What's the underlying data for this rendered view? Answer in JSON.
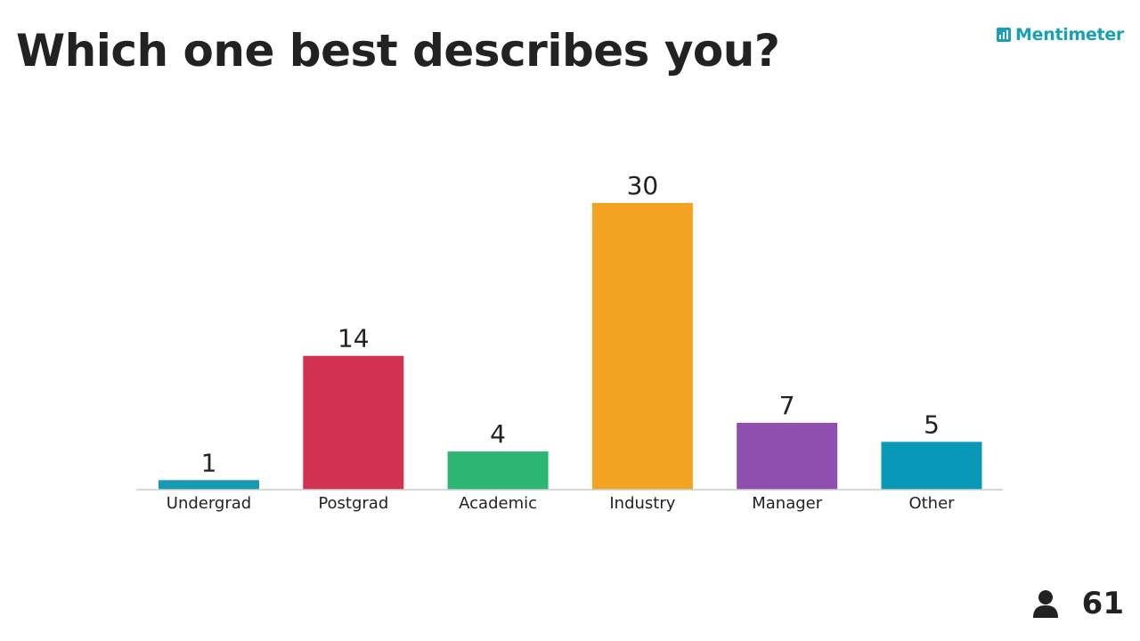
{
  "question": {
    "title": "Which one best describes you?"
  },
  "brand": {
    "name": "Mentimeter",
    "icon": "bar-chart-icon",
    "color": "#17a1b5"
  },
  "participants": {
    "icon": "person-icon",
    "count": "61"
  },
  "chart_data": {
    "type": "bar",
    "title": "Which one best describes you?",
    "xlabel": "",
    "ylabel": "",
    "grid": false,
    "categories": [
      "Undergrad",
      "Postgrad",
      "Academic",
      "Industry",
      "Manager",
      "Other"
    ],
    "values": [
      1,
      14,
      4,
      30,
      7,
      5
    ],
    "value_labels": [
      "1",
      "14",
      "4",
      "30",
      "7",
      "5"
    ],
    "colors": [
      "#1899b4",
      "#d2314f",
      "#2bb673",
      "#f3a321",
      "#8e4fb0",
      "#0a98b8"
    ],
    "ylim": [
      0,
      30
    ]
  }
}
